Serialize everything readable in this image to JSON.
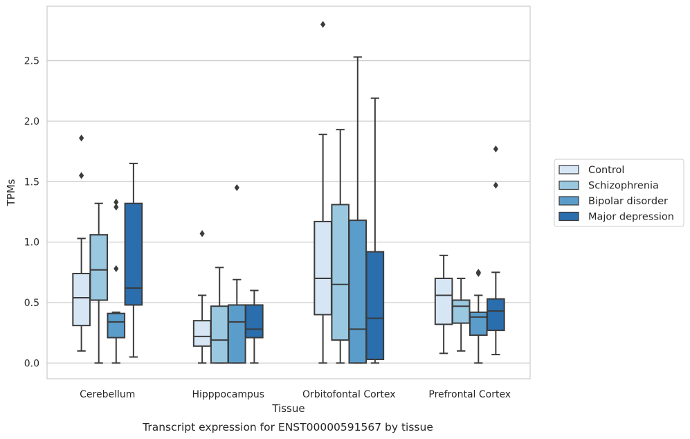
{
  "chart_data": {
    "type": "boxplot",
    "caption": "Transcript expression for ENST00000591567 by tissue",
    "xlabel": "Tissue",
    "ylabel": "TPMs",
    "ylim": [
      -0.13,
      2.95
    ],
    "yticks": [
      0.0,
      0.5,
      1.0,
      1.5,
      2.0,
      2.5
    ],
    "ytick_labels": [
      "0.0",
      "0.5",
      "1.0",
      "1.5",
      "2.0",
      "2.5"
    ],
    "grid": "horizontal",
    "legend_position": "right",
    "categories": [
      "Cerebellum",
      "Hipppocampus",
      "Orbitofontal Cortex",
      "Prefrontal Cortex"
    ],
    "series": [
      {
        "name": "Control",
        "color": "#d6e6f4",
        "boxes": [
          {
            "whislo": 0.1,
            "q1": 0.31,
            "med": 0.54,
            "q3": 0.74,
            "whishi": 1.03,
            "fliers": [
              1.86,
              1.55
            ]
          },
          {
            "whislo": 0.0,
            "q1": 0.14,
            "med": 0.22,
            "q3": 0.35,
            "whishi": 0.56,
            "fliers": [
              1.07
            ]
          },
          {
            "whislo": 0.0,
            "q1": 0.4,
            "med": 0.7,
            "q3": 1.17,
            "whishi": 1.89,
            "fliers": [
              2.8
            ]
          },
          {
            "whislo": 0.08,
            "q1": 0.32,
            "med": 0.56,
            "q3": 0.7,
            "whishi": 0.89,
            "fliers": []
          }
        ]
      },
      {
        "name": "Schizophrenia",
        "color": "#9ac8e0",
        "boxes": [
          {
            "whislo": 0.0,
            "q1": 0.52,
            "med": 0.77,
            "q3": 1.06,
            "whishi": 1.32,
            "fliers": []
          },
          {
            "whislo": 0.0,
            "q1": 0.0,
            "med": 0.19,
            "q3": 0.47,
            "whishi": 0.79,
            "fliers": []
          },
          {
            "whislo": 0.0,
            "q1": 0.19,
            "med": 0.65,
            "q3": 1.31,
            "whishi": 1.93,
            "fliers": []
          },
          {
            "whislo": 0.1,
            "q1": 0.33,
            "med": 0.47,
            "q3": 0.52,
            "whishi": 0.7,
            "fliers": []
          }
        ]
      },
      {
        "name": "Bipolar disorder",
        "color": "#5a9dcb",
        "boxes": [
          {
            "whislo": 0.0,
            "q1": 0.21,
            "med": 0.34,
            "q3": 0.41,
            "whishi": 0.42,
            "fliers": [
              1.33,
              1.29,
              0.78
            ]
          },
          {
            "whislo": 0.0,
            "q1": 0.0,
            "med": 0.34,
            "q3": 0.48,
            "whishi": 0.69,
            "fliers": [
              1.45
            ]
          },
          {
            "whislo": 0.0,
            "q1": 0.0,
            "med": 0.28,
            "q3": 1.18,
            "whishi": 2.53,
            "fliers": []
          },
          {
            "whislo": 0.0,
            "q1": 0.23,
            "med": 0.38,
            "q3": 0.42,
            "whishi": 0.56,
            "fliers": [
              0.75,
              0.74
            ]
          }
        ]
      },
      {
        "name": "Major depression",
        "color": "#2a6ead",
        "boxes": [
          {
            "whislo": 0.05,
            "q1": 0.48,
            "med": 0.62,
            "q3": 1.32,
            "whishi": 1.65,
            "fliers": []
          },
          {
            "whislo": 0.0,
            "q1": 0.21,
            "med": 0.28,
            "q3": 0.48,
            "whishi": 0.6,
            "fliers": []
          },
          {
            "whislo": 0.0,
            "q1": 0.03,
            "med": 0.37,
            "q3": 0.92,
            "whishi": 2.19,
            "fliers": []
          },
          {
            "whislo": 0.07,
            "q1": 0.27,
            "med": 0.43,
            "q3": 0.53,
            "whishi": 0.75,
            "fliers": [
              1.77,
              1.47
            ]
          }
        ]
      }
    ]
  }
}
